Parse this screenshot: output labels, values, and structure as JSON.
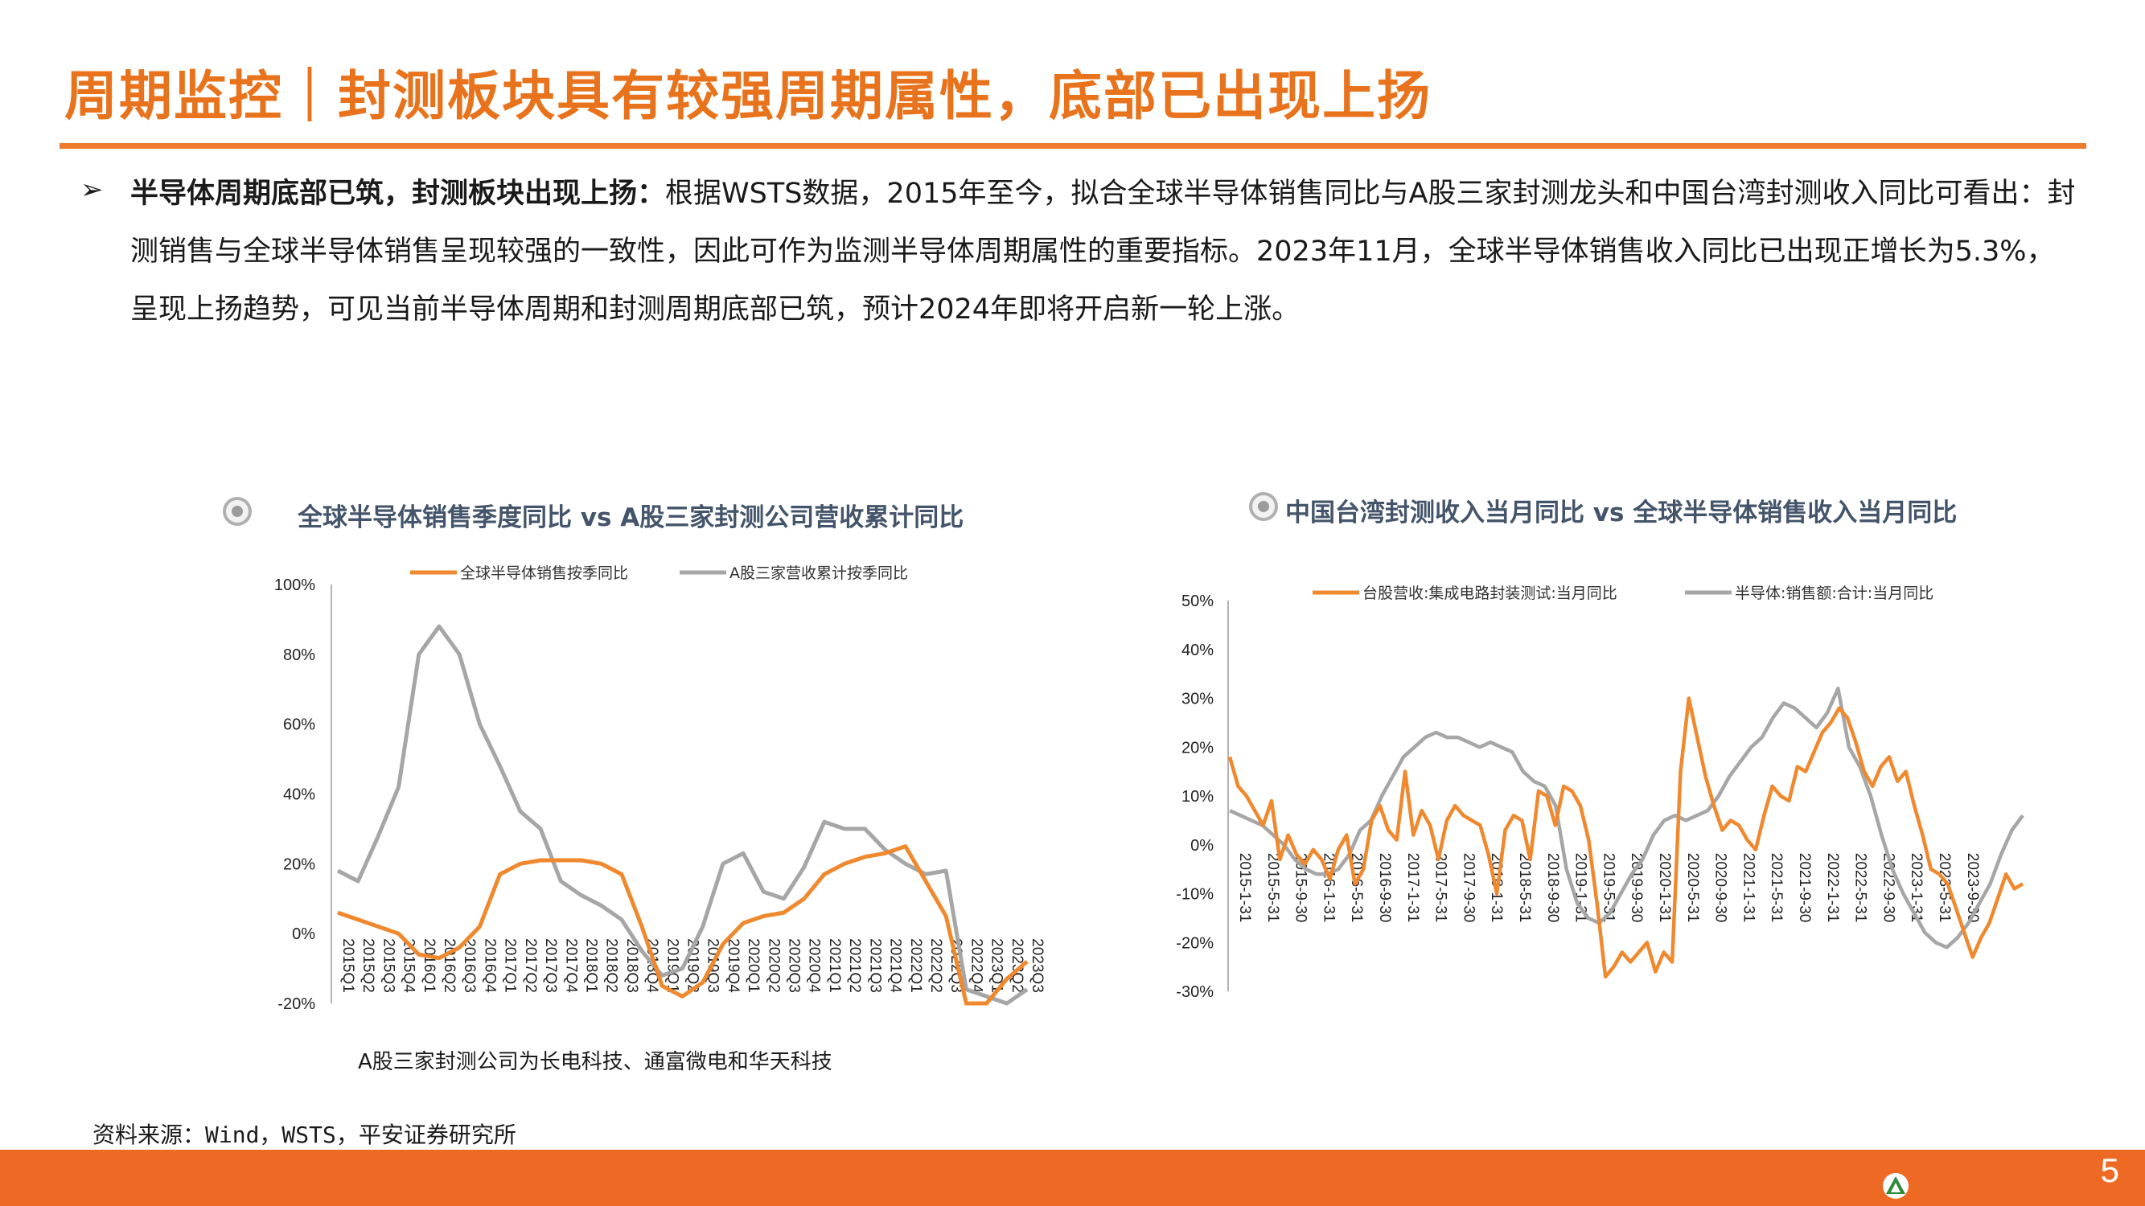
{
  "header": {
    "title": "周期监控｜封测板块具有较强周期属性，底部已出现上扬"
  },
  "body": {
    "bold_lead": "半导体周期底部已筑，封测板块出现上扬：",
    "text": "根据WSTS数据，2015年至今，拟合全球半导体销售同比与A股三家封测龙头和中国台湾封测收入同比可看出：封测销售与全球半导体销售呈现较强的一致性，因此可作为监测半导体周期属性的重要指标。2023年11月，全球半导体销售收入同比已出现正增长为5.3%，呈现上扬趋势，可见当前半导体周期和封测周期底部已筑，预计2024年即将开启新一轮上涨。"
  },
  "colors": {
    "accent": "#ee7a2b",
    "orange_series": "#f0882e",
    "gray_series": "#a6a6a6",
    "title_blue": "#44546a"
  },
  "chart_data": [
    {
      "type": "line",
      "title": "全球半导体销售季度同比 vs A股三家封测公司营收累计同比",
      "ylim": [
        -20,
        100
      ],
      "yticks": [
        -20,
        0,
        20,
        40,
        60,
        80,
        100
      ],
      "ytick_labels": [
        "-20%",
        "0%",
        "20%",
        "40%",
        "60%",
        "80%",
        "100%"
      ],
      "categories": [
        "2015Q1",
        "2015Q2",
        "2015Q3",
        "2015Q4",
        "2016Q1",
        "2016Q2",
        "2016Q3",
        "2016Q4",
        "2017Q1",
        "2017Q2",
        "2017Q3",
        "2017Q4",
        "2018Q1",
        "2018Q2",
        "2018Q3",
        "2018Q4",
        "2019Q1",
        "2019Q2",
        "2019Q3",
        "2019Q4",
        "2020Q1",
        "2020Q2",
        "2020Q3",
        "2020Q4",
        "2021Q1",
        "2021Q2",
        "2021Q3",
        "2021Q4",
        "2022Q1",
        "2022Q2",
        "2022Q3",
        "2022Q4",
        "2023Q1",
        "2023Q2",
        "2023Q3"
      ],
      "series": [
        {
          "name": "全球半导体销售按季同比",
          "color": "#f0882e",
          "values": [
            6,
            4,
            2,
            0,
            -6,
            -7,
            -4,
            2,
            17,
            20,
            21,
            21,
            21,
            20,
            17,
            2,
            -15,
            -18,
            -14,
            -3,
            3,
            5,
            6,
            10,
            17,
            20,
            22,
            23,
            25,
            15,
            5,
            -20,
            -20,
            -13,
            -8
          ]
        },
        {
          "name": "A股三家营收累计按季同比",
          "color": "#a6a6a6",
          "values": [
            18,
            15,
            28,
            42,
            80,
            88,
            80,
            60,
            48,
            35,
            30,
            15,
            11,
            8,
            4,
            -5,
            -12,
            -10,
            2,
            20,
            23,
            12,
            10,
            19,
            32,
            30,
            30,
            24,
            20,
            17,
            18,
            -16,
            -18,
            -20,
            -16
          ]
        }
      ],
      "note": "A股三家封测公司为长电科技、通富微电和华天科技"
    },
    {
      "type": "line",
      "title": "中国台湾封测收入当月同比 vs 全球半导体销售收入当月同比",
      "ylim": [
        -30,
        50
      ],
      "yticks": [
        -30,
        -20,
        -10,
        0,
        10,
        20,
        30,
        40,
        50
      ],
      "ytick_labels": [
        "-30%",
        "-20%",
        "-10%",
        "0%",
        "10%",
        "20%",
        "30%",
        "40%",
        "50%"
      ],
      "x_tick_labels": [
        "2015-1-31",
        "2015-5-31",
        "2015-9-30",
        "2016-1-31",
        "2016-5-31",
        "2016-9-30",
        "2017-1-31",
        "2017-5-31",
        "2017-9-30",
        "2018-1-31",
        "2018-5-31",
        "2018-9-30",
        "2019-1-31",
        "2019-5-31",
        "2019-9-30",
        "2020-1-31",
        "2020-5-31",
        "2020-9-30",
        "2021-1-31",
        "2021-5-31",
        "2021-9-30",
        "2022-1-31",
        "2022-5-31",
        "2022-9-30",
        "2023-1-31",
        "2023-5-31",
        "2023-9-30"
      ],
      "series": [
        {
          "name": "台股营收:集成电路封装测试:当月同比",
          "color": "#f0882e",
          "values": [
            18,
            12,
            10,
            7,
            4,
            9,
            -3,
            2,
            -2,
            -4,
            -1,
            -3,
            -7,
            -1,
            2,
            -8,
            -5,
            5,
            8,
            3,
            1,
            15,
            2,
            7,
            4,
            -3,
            5,
            8,
            6,
            5,
            4,
            -2,
            -10,
            3,
            6,
            5,
            -3,
            11,
            10,
            4,
            12,
            11,
            8,
            1,
            -12,
            -27,
            -25,
            -22,
            -24,
            -22,
            -20,
            -26,
            -22,
            -24,
            15,
            30,
            22,
            14,
            8,
            3,
            5,
            4,
            1,
            -1,
            6,
            12,
            10,
            9,
            16,
            15,
            19,
            23,
            25,
            28,
            26,
            21,
            15,
            12,
            16,
            18,
            13,
            15,
            8,
            2,
            -5,
            -6,
            -8,
            -13,
            -18,
            -23,
            -19,
            -16,
            -11,
            -6,
            -9,
            -8
          ]
        },
        {
          "name": "半导体:销售额:合计:当月同比",
          "color": "#a6a6a6",
          "values": [
            7,
            6,
            5,
            4,
            2,
            0,
            -3,
            -5,
            -6,
            -6,
            -5,
            -2,
            3,
            5,
            10,
            14,
            18,
            20,
            22,
            23,
            22,
            22,
            21,
            20,
            21,
            20,
            19,
            15,
            13,
            12,
            8,
            -5,
            -12,
            -15,
            -16,
            -14,
            -10,
            -6,
            -3,
            2,
            5,
            6,
            5,
            6,
            7,
            10,
            14,
            17,
            20,
            22,
            26,
            29,
            28,
            26,
            24,
            27,
            32,
            20,
            16,
            10,
            2,
            -5,
            -10,
            -14,
            -18,
            -20,
            -21,
            -19,
            -16,
            -12,
            -8,
            -2,
            3,
            6
          ]
        }
      ]
    }
  ],
  "footer": {
    "source": "资料来源：Wind，WSTS，平安证券研究所",
    "page_number": "5"
  }
}
